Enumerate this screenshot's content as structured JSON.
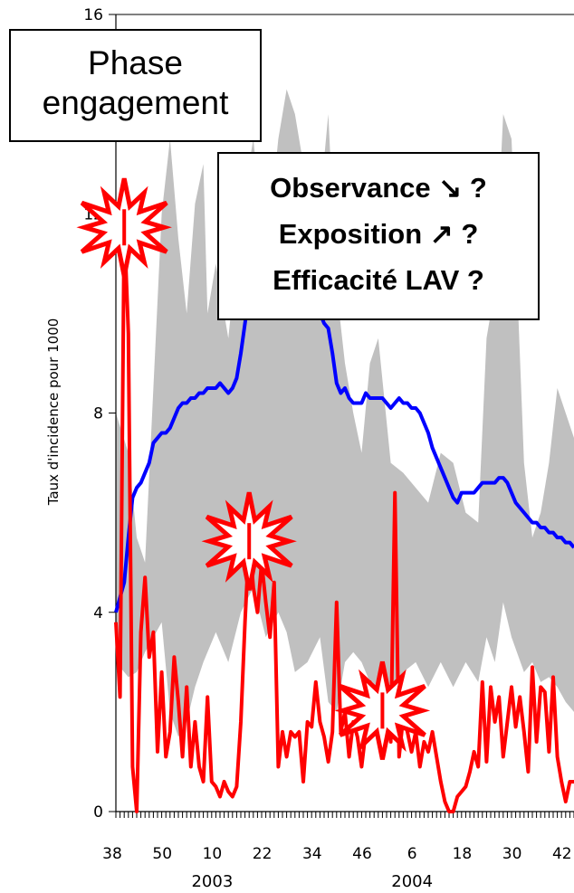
{
  "labels": {
    "phase": [
      "Phase",
      "engagement"
    ],
    "questions": [
      "Observance ↘ ?",
      "Exposition ↗ ?",
      "Efficacité LAV ?"
    ]
  },
  "chart_data": {
    "type": "line",
    "ylabel": "Taux d'incidence pour 1000",
    "ylim": [
      0,
      16
    ],
    "y_ticks": [
      0,
      4,
      8,
      12,
      16
    ],
    "x_ticks": [
      "38",
      "50",
      "10",
      "22",
      "34",
      "46",
      "6",
      "18",
      "30",
      "42"
    ],
    "x_tick_index": [
      0,
      12,
      24,
      36,
      48,
      60,
      72,
      84,
      96,
      108
    ],
    "year_labels": [
      {
        "label": "2003",
        "index": 24
      },
      {
        "label": "2004",
        "index": 72
      }
    ],
    "n_weeks": 110,
    "colors": {
      "series1": "#0000ff",
      "series2": "#ff0000",
      "band": "#c0c0c0"
    },
    "band": {
      "name": "",
      "x_index": [
        0,
        3,
        5,
        7,
        9,
        11,
        13,
        15,
        17,
        19,
        21,
        22,
        24,
        27,
        30,
        33,
        36,
        39,
        41,
        43,
        46,
        49,
        51,
        53,
        55,
        57,
        59,
        61,
        63,
        66,
        69,
        72,
        75,
        78,
        81,
        84,
        87,
        89,
        91,
        93,
        95,
        98,
        100,
        102,
        104,
        106,
        108,
        110
      ],
      "upper": [
        8.0,
        7.2,
        5.5,
        5.0,
        8.5,
        12.0,
        13.5,
        11.5,
        10.0,
        12.2,
        13.0,
        10.0,
        11.0,
        9.5,
        12.0,
        13.5,
        11.0,
        13.5,
        14.5,
        14.0,
        12.5,
        12.2,
        14.0,
        10.5,
        9.0,
        8.0,
        7.2,
        9.0,
        9.5,
        7.0,
        6.8,
        6.5,
        6.2,
        7.2,
        7.0,
        6.0,
        5.8,
        9.5,
        10.5,
        14.0,
        13.5,
        7.0,
        5.5,
        6.0,
        7.0,
        8.5,
        8.0,
        7.5
      ],
      "lower": [
        3.0,
        2.7,
        2.8,
        3.2,
        3.5,
        3.8,
        2.0,
        1.5,
        1.8,
        2.5,
        3.0,
        3.2,
        3.6,
        3.0,
        4.0,
        4.5,
        3.5,
        4.0,
        3.6,
        2.8,
        3.0,
        3.5,
        2.2,
        2.0,
        3.0,
        3.2,
        3.0,
        2.6,
        1.8,
        2.5,
        2.8,
        3.0,
        2.5,
        3.0,
        2.5,
        3.0,
        2.6,
        3.5,
        3.0,
        4.2,
        3.5,
        2.8,
        3.0,
        2.6,
        2.7,
        2.5,
        2.2,
        2.0
      ]
    },
    "series": [
      {
        "name": "",
        "color": "#0000ff",
        "x_index": [
          0,
          2,
          3,
          4,
          5,
          6,
          7,
          8,
          9,
          10,
          11,
          12,
          13,
          14,
          15,
          16,
          17,
          18,
          19,
          20,
          21,
          22,
          23,
          24,
          25,
          26,
          27,
          28,
          29,
          30,
          31,
          32,
          33,
          34,
          35,
          36,
          37,
          38,
          39,
          40,
          41,
          42,
          43,
          44,
          45,
          46,
          47,
          48,
          49,
          50,
          51,
          52,
          53,
          54,
          55,
          56,
          57,
          58,
          59,
          60,
          61,
          62,
          63,
          64,
          65,
          66,
          67,
          68,
          69,
          70,
          71,
          72,
          73,
          74,
          75,
          76,
          77,
          78,
          79,
          80,
          81,
          82,
          83,
          84,
          85,
          86,
          87,
          88,
          89,
          90,
          91,
          92,
          93,
          94,
          95,
          96,
          97,
          98,
          99,
          100,
          101,
          102,
          103,
          104,
          105,
          106,
          107,
          108,
          109,
          110
        ],
        "values": [
          4.0,
          4.6,
          5.5,
          6.3,
          6.5,
          6.6,
          6.8,
          7.0,
          7.4,
          7.5,
          7.6,
          7.6,
          7.7,
          7.9,
          8.1,
          8.2,
          8.2,
          8.3,
          8.3,
          8.4,
          8.4,
          8.5,
          8.5,
          8.5,
          8.6,
          8.5,
          8.4,
          8.5,
          8.7,
          9.2,
          9.8,
          10.4,
          10.6,
          10.5,
          10.8,
          11.0,
          10.8,
          10.6,
          10.2,
          10.0,
          10.3,
          10.2,
          10.4,
          10.0,
          10.0,
          10.1,
          10.3,
          10.3,
          10.0,
          9.8,
          9.7,
          9.2,
          8.6,
          8.4,
          8.5,
          8.3,
          8.2,
          8.2,
          8.2,
          8.4,
          8.3,
          8.3,
          8.3,
          8.3,
          8.2,
          8.1,
          8.2,
          8.3,
          8.2,
          8.2,
          8.1,
          8.1,
          8.0,
          7.8,
          7.6,
          7.3,
          7.1,
          6.9,
          6.7,
          6.5,
          6.3,
          6.2,
          6.4,
          6.4,
          6.4,
          6.4,
          6.5,
          6.6,
          6.6,
          6.6,
          6.6,
          6.7,
          6.7,
          6.6,
          6.4,
          6.2,
          6.1,
          6.0,
          5.9,
          5.8,
          5.8,
          5.7,
          5.7,
          5.6,
          5.6,
          5.5,
          5.5,
          5.4,
          5.4,
          5.3
        ]
      },
      {
        "name": "",
        "color": "#ff0000",
        "x_index": [
          0,
          1,
          2,
          3,
          4,
          5,
          6,
          7,
          8,
          9,
          10,
          11,
          12,
          13,
          14,
          15,
          16,
          17,
          18,
          19,
          20,
          21,
          22,
          23,
          24,
          25,
          26,
          27,
          28,
          29,
          30,
          31,
          32,
          33,
          34,
          35,
          36,
          37,
          38,
          39,
          40,
          41,
          42,
          43,
          44,
          45,
          46,
          47,
          48,
          49,
          50,
          51,
          52,
          53,
          54,
          55,
          56,
          57,
          58,
          59,
          60,
          61,
          62,
          63,
          64,
          65,
          66,
          67,
          68,
          69,
          70,
          71,
          72,
          73,
          74,
          75,
          76,
          77,
          78,
          79,
          80,
          81,
          82,
          83,
          84,
          85,
          86,
          87,
          88,
          89,
          90,
          91,
          92,
          93,
          94,
          95,
          96,
          97,
          98,
          99,
          100,
          101,
          102,
          103,
          104,
          105,
          106,
          107,
          108,
          109,
          110
        ],
        "values": [
          3.8,
          2.3,
          11.8,
          9.6,
          0.9,
          0.0,
          3.6,
          4.7,
          3.1,
          3.6,
          1.2,
          2.8,
          1.1,
          1.6,
          3.1,
          2.2,
          1.1,
          2.5,
          0.9,
          1.8,
          0.9,
          0.6,
          2.3,
          0.6,
          0.5,
          0.3,
          0.6,
          0.4,
          0.3,
          0.5,
          1.8,
          3.8,
          5.5,
          4.5,
          4.0,
          5.0,
          4.2,
          3.5,
          4.6,
          0.9,
          1.6,
          1.1,
          1.6,
          1.5,
          1.6,
          0.6,
          1.8,
          1.7,
          2.6,
          1.8,
          1.5,
          1.0,
          1.6,
          4.2,
          1.6,
          2.0,
          1.1,
          1.8,
          1.5,
          0.9,
          1.6,
          2.6,
          2.0,
          1.7,
          2.1,
          1.9,
          1.4,
          6.4,
          1.1,
          1.9,
          1.6,
          1.2,
          1.6,
          0.9,
          1.4,
          1.2,
          1.6,
          1.1,
          0.6,
          0.2,
          0.0,
          0.0,
          0.3,
          0.4,
          0.5,
          0.8,
          1.2,
          0.9,
          2.6,
          1.0,
          2.5,
          1.8,
          2.3,
          1.1,
          1.8,
          2.5,
          1.7,
          2.3,
          1.6,
          0.8,
          2.9,
          1.4,
          2.5,
          2.4,
          1.2,
          2.7,
          1.1,
          0.6,
          0.2,
          0.6,
          0.6
        ]
      }
    ],
    "burst_index": [
      2,
      32,
      64
    ]
  }
}
